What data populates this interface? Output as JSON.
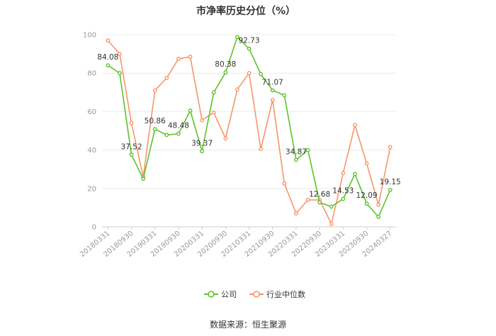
{
  "chart_data": {
    "type": "line",
    "title": "市净率历史分位（%）",
    "source": "数据来源：恒生聚源",
    "ylim": [
      0,
      100
    ],
    "yticks": [
      0,
      20,
      40,
      60,
      80,
      100
    ],
    "xtick_labels": [
      "20180331",
      "20180930",
      "20190331",
      "20190930",
      "20200331",
      "20200930",
      "20210331",
      "20210930",
      "20220331",
      "20220930",
      "20230331",
      "20230930",
      "20240327"
    ],
    "legend_position": "bottom",
    "grid": true,
    "series": [
      {
        "name": "公司",
        "color": "#5cc32a",
        "values": [
          84.08,
          80.0,
          37.52,
          25.0,
          50.86,
          47.8,
          48.48,
          60.5,
          39.37,
          70.0,
          80.38,
          98.8,
          92.73,
          79.5,
          71.07,
          68.5,
          34.87,
          40.0,
          12.68,
          10.5,
          14.53,
          27.5,
          12.09,
          5.2,
          19.15
        ],
        "labels": {
          "0": "84.08",
          "2": "37.52",
          "4": "50.86",
          "6": "48.48",
          "8": "39.37",
          "10": "80.38",
          "12": "92.73",
          "14": "71.07",
          "16": "34.87",
          "18": "12.68",
          "20": "14.53",
          "22": "12.09",
          "24": "19.15"
        }
      },
      {
        "name": "行业中位数",
        "color": "#f7956a",
        "values": [
          97.0,
          90.0,
          54.0,
          26.0,
          71.0,
          77.5,
          87.5,
          88.5,
          55.5,
          59.5,
          46.0,
          71.5,
          80.0,
          40.5,
          66.0,
          22.5,
          7.0,
          14.0,
          14.0,
          1.5,
          28.0,
          53.0,
          33.0,
          11.5,
          41.5
        ]
      }
    ]
  }
}
